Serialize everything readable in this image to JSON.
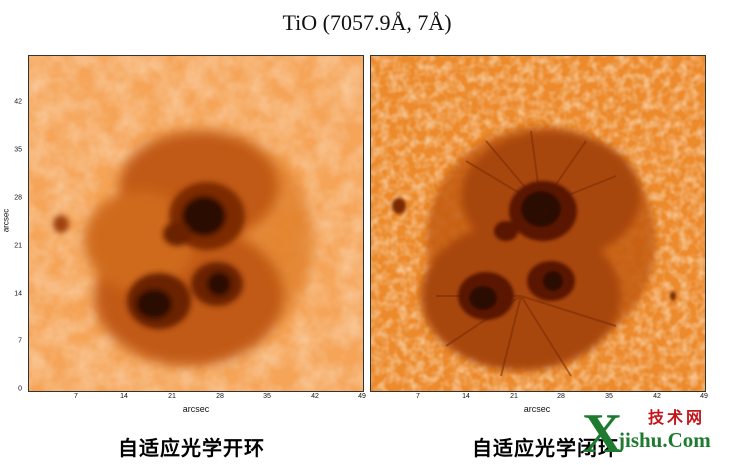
{
  "title": "TiO (7057.9Å, 7Å)",
  "axes": {
    "xlabel": "arcsec",
    "ylabel": "arcsec",
    "x_ticks": [
      "7",
      "14",
      "21",
      "28",
      "35",
      "42",
      "49"
    ],
    "y_ticks": [
      "0",
      "7",
      "14",
      "21",
      "28",
      "35",
      "42"
    ]
  },
  "panels": [
    {
      "caption": "自适应光学开环",
      "image": "solar-sunspot-tio-open-loop"
    },
    {
      "caption": "自适应光学闭环",
      "image": "solar-sunspot-tio-closed-loop"
    }
  ],
  "watermark": {
    "logo_text": "X jishu.Com 技术网",
    "colors": {
      "green": "#1d7a2e",
      "red": "#c2161b"
    }
  },
  "colors": {
    "photosphere_light": "#fde6c8",
    "photosphere_mid": "#f39a3a",
    "penumbra": "#b8560f",
    "umbra": "#2a0a02"
  }
}
